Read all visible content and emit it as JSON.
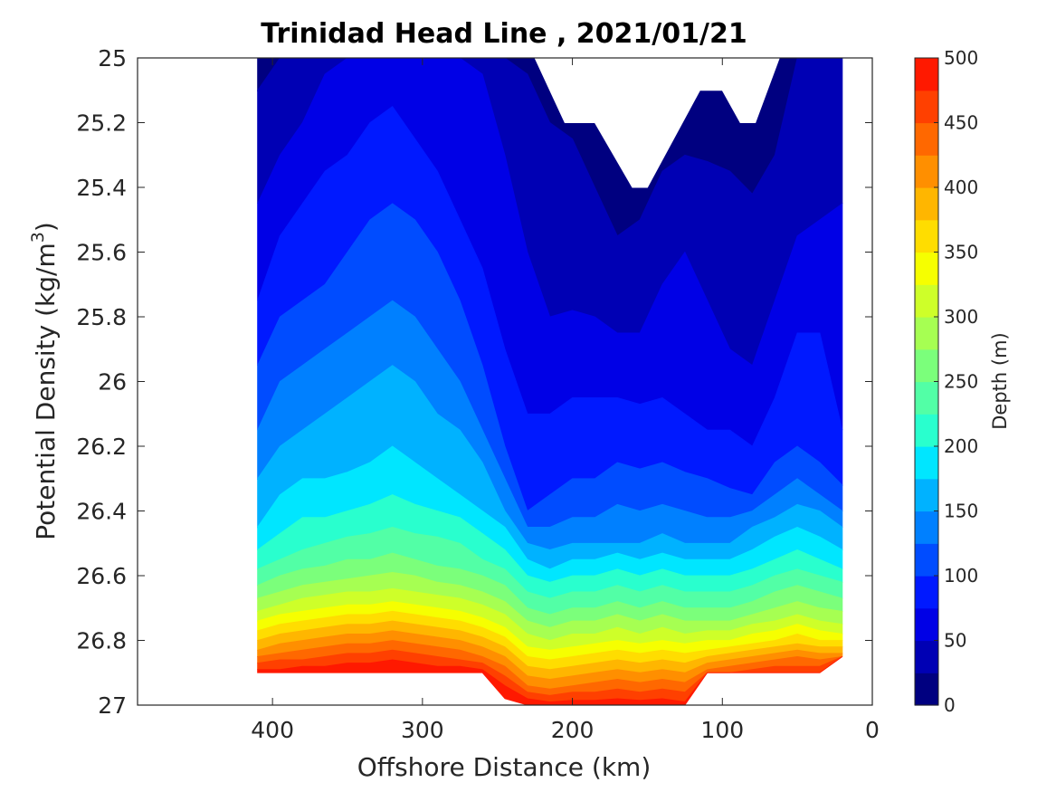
{
  "chart_data": {
    "type": "filled-contour",
    "title": "Trinidad Head Line , 2021/01/21",
    "xlabel": "Offshore Distance (km)",
    "ylabel": "Potential Density (kg/m",
    "ylabel_superscript": "3",
    "ylabel_close": ")",
    "xlim": [
      490,
      0
    ],
    "x_reversed": true,
    "ylim": [
      27,
      25
    ],
    "y_reversed": true,
    "xticks": [
      400,
      300,
      200,
      100,
      0
    ],
    "xtick_labels": [
      "400",
      "300",
      "200",
      "100",
      "0"
    ],
    "yticks": [
      25,
      25.2,
      25.4,
      25.6,
      25.8,
      26,
      26.2,
      26.4,
      26.6,
      26.8,
      27
    ],
    "ytick_labels": [
      "25",
      "25.2",
      "25.4",
      "25.6",
      "25.8",
      "26",
      "26.2",
      "26.4",
      "26.6",
      "26.8",
      "27"
    ],
    "grid": false,
    "colorbar": {
      "label": "Depth (m)",
      "range": [
        0,
        500
      ],
      "level_step": 25,
      "tick_values": [
        0,
        50,
        100,
        150,
        200,
        250,
        300,
        350,
        400,
        450,
        500
      ],
      "tick_labels": [
        "0",
        "50",
        "100",
        "150",
        "200",
        "250",
        "300",
        "350",
        "400",
        "450",
        "500"
      ],
      "colormap": "jet",
      "colors": [
        "#000080",
        "#0000b4",
        "#0000e6",
        "#0019ff",
        "#004cff",
        "#0080ff",
        "#00b2ff",
        "#00e6ff",
        "#29ffce",
        "#52ffa6",
        "#7bff7b",
        "#a6ff52",
        "#ceff29",
        "#f6ff00",
        "#ffdd00",
        "#ffb600",
        "#ff8f00",
        "#ff6800",
        "#ff4000",
        "#ff1900",
        "#e60000"
      ]
    },
    "x": [
      410,
      395,
      380,
      365,
      350,
      335,
      320,
      305,
      290,
      275,
      260,
      245,
      230,
      215,
      200,
      185,
      170,
      155,
      140,
      125,
      110,
      95,
      80,
      65,
      50,
      35,
      20
    ],
    "bottom_density": [
      26.9,
      26.9,
      26.9,
      26.9,
      26.9,
      26.9,
      26.9,
      26.9,
      26.9,
      26.9,
      26.9,
      26.98,
      27.0,
      27.0,
      27.0,
      27.0,
      27.0,
      27.0,
      27.0,
      27.0,
      26.9,
      26.9,
      26.9,
      26.9,
      26.9,
      26.9,
      26.85
    ],
    "depth_isopycnals": [
      {
        "depth": 25,
        "density": [
          25.1,
          25.0,
          25.0,
          25.0,
          25.0,
          25.0,
          25.0,
          25.0,
          25.0,
          25.0,
          25.0,
          25.0,
          25.05,
          25.2,
          25.25,
          25.4,
          25.55,
          25.5,
          25.35,
          25.3,
          25.32,
          25.35,
          25.42,
          25.3,
          25.0,
          25.0,
          25.0
        ]
      },
      {
        "depth": 50,
        "density": [
          25.45,
          25.3,
          25.2,
          25.05,
          25.0,
          25.0,
          25.0,
          25.0,
          25.0,
          25.0,
          25.05,
          25.3,
          25.6,
          25.8,
          25.78,
          25.8,
          25.85,
          25.85,
          25.7,
          25.6,
          25.75,
          25.9,
          25.95,
          25.75,
          25.55,
          25.5,
          25.45
        ]
      },
      {
        "depth": 75,
        "density": [
          25.75,
          25.55,
          25.45,
          25.35,
          25.3,
          25.2,
          25.15,
          25.25,
          25.35,
          25.5,
          25.65,
          25.9,
          26.1,
          26.1,
          26.05,
          26.05,
          26.05,
          26.07,
          26.05,
          26.1,
          26.15,
          26.15,
          26.2,
          26.05,
          25.85,
          25.85,
          26.15
        ]
      },
      {
        "depth": 100,
        "density": [
          25.95,
          25.8,
          25.75,
          25.7,
          25.6,
          25.5,
          25.45,
          25.5,
          25.6,
          25.75,
          25.95,
          26.2,
          26.4,
          26.35,
          26.3,
          26.3,
          26.25,
          26.27,
          26.25,
          26.28,
          26.3,
          26.33,
          26.35,
          26.25,
          26.2,
          26.25,
          26.32
        ]
      },
      {
        "depth": 125,
        "density": [
          26.15,
          26.0,
          25.95,
          25.9,
          25.85,
          25.8,
          25.75,
          25.8,
          25.9,
          26.0,
          26.15,
          26.3,
          26.45,
          26.45,
          26.42,
          26.42,
          26.38,
          26.4,
          26.38,
          26.4,
          26.42,
          26.42,
          26.4,
          26.35,
          26.3,
          26.35,
          26.4
        ]
      },
      {
        "depth": 150,
        "density": [
          26.3,
          26.2,
          26.15,
          26.1,
          26.05,
          26.0,
          25.95,
          26.0,
          26.1,
          26.15,
          26.25,
          26.4,
          26.5,
          26.52,
          26.5,
          26.5,
          26.5,
          26.5,
          26.47,
          26.5,
          26.5,
          26.5,
          26.45,
          26.42,
          26.38,
          26.4,
          26.45
        ]
      },
      {
        "depth": 175,
        "density": [
          26.45,
          26.35,
          26.3,
          26.3,
          26.28,
          26.25,
          26.2,
          26.25,
          26.3,
          26.35,
          26.4,
          26.45,
          26.55,
          26.58,
          26.55,
          26.55,
          26.53,
          26.55,
          26.53,
          26.55,
          26.55,
          26.55,
          26.52,
          26.48,
          26.45,
          26.48,
          26.52
        ]
      },
      {
        "depth": 200,
        "density": [
          26.52,
          26.47,
          26.42,
          26.42,
          26.4,
          26.38,
          26.35,
          26.38,
          26.4,
          26.42,
          26.47,
          26.52,
          26.6,
          26.62,
          26.6,
          26.6,
          26.58,
          26.6,
          26.58,
          26.6,
          26.6,
          26.6,
          26.58,
          26.55,
          26.52,
          26.55,
          26.58
        ]
      },
      {
        "depth": 225,
        "density": [
          26.58,
          26.55,
          26.52,
          26.5,
          26.48,
          26.47,
          26.45,
          26.47,
          26.48,
          26.5,
          26.55,
          26.58,
          26.65,
          26.67,
          26.65,
          26.65,
          26.63,
          26.65,
          26.63,
          26.65,
          26.65,
          26.65,
          26.63,
          26.6,
          26.58,
          26.6,
          26.62
        ]
      },
      {
        "depth": 250,
        "density": [
          26.63,
          26.6,
          26.58,
          26.57,
          26.55,
          26.55,
          26.53,
          26.55,
          26.57,
          26.58,
          26.6,
          26.63,
          26.7,
          26.72,
          26.7,
          26.7,
          26.68,
          26.7,
          26.68,
          26.7,
          26.7,
          26.7,
          26.68,
          26.65,
          26.63,
          26.65,
          26.67
        ]
      },
      {
        "depth": 275,
        "density": [
          26.67,
          26.65,
          26.63,
          26.62,
          26.61,
          26.6,
          26.59,
          26.6,
          26.62,
          26.63,
          26.65,
          26.68,
          26.74,
          26.76,
          26.74,
          26.74,
          26.72,
          26.74,
          26.72,
          26.74,
          26.74,
          26.74,
          26.72,
          26.7,
          26.68,
          26.7,
          26.71
        ]
      },
      {
        "depth": 300,
        "density": [
          26.71,
          26.69,
          26.67,
          26.66,
          26.65,
          26.65,
          26.64,
          26.65,
          26.66,
          26.67,
          26.69,
          26.72,
          26.78,
          26.8,
          26.78,
          26.78,
          26.76,
          26.78,
          26.76,
          26.78,
          26.77,
          26.77,
          26.75,
          26.74,
          26.72,
          26.74,
          26.75
        ]
      },
      {
        "depth": 325,
        "density": [
          26.74,
          26.72,
          26.71,
          26.7,
          26.69,
          26.69,
          26.68,
          26.69,
          26.7,
          26.71,
          26.73,
          26.76,
          26.82,
          26.83,
          26.82,
          26.81,
          26.8,
          26.81,
          26.8,
          26.81,
          26.8,
          26.8,
          26.78,
          26.77,
          26.75,
          26.77,
          26.78
        ]
      },
      {
        "depth": 350,
        "density": [
          26.77,
          26.75,
          26.74,
          26.73,
          26.72,
          26.72,
          26.71,
          26.72,
          26.73,
          26.74,
          26.76,
          26.79,
          26.85,
          26.86,
          26.85,
          26.84,
          26.83,
          26.84,
          26.83,
          26.84,
          26.83,
          26.82,
          26.81,
          26.8,
          26.78,
          26.8,
          26.8
        ]
      },
      {
        "depth": 375,
        "density": [
          26.8,
          26.78,
          26.77,
          26.76,
          26.75,
          26.75,
          26.74,
          26.75,
          26.76,
          26.77,
          26.79,
          26.82,
          26.88,
          26.89,
          26.88,
          26.87,
          26.86,
          26.87,
          26.86,
          26.87,
          26.85,
          26.84,
          26.83,
          26.82,
          26.81,
          26.82,
          26.82
        ]
      },
      {
        "depth": 400,
        "density": [
          26.83,
          26.81,
          26.8,
          26.79,
          26.78,
          26.78,
          26.77,
          26.78,
          26.79,
          26.8,
          26.82,
          26.85,
          26.91,
          26.92,
          26.91,
          26.9,
          26.89,
          26.9,
          26.89,
          26.9,
          26.87,
          26.86,
          26.85,
          26.84,
          26.83,
          26.84,
          26.84
        ]
      },
      {
        "depth": 425,
        "density": [
          26.85,
          26.84,
          26.83,
          26.82,
          26.81,
          26.81,
          26.8,
          26.81,
          26.82,
          26.83,
          26.85,
          26.88,
          26.94,
          26.95,
          26.94,
          26.93,
          26.92,
          26.93,
          26.92,
          26.93,
          26.89,
          26.88,
          26.87,
          26.86,
          26.85,
          26.86,
          26.85
        ]
      },
      {
        "depth": 450,
        "density": [
          26.87,
          26.86,
          26.86,
          26.85,
          26.84,
          26.84,
          26.83,
          26.84,
          26.85,
          26.86,
          26.87,
          26.91,
          26.96,
          26.97,
          26.96,
          26.96,
          26.95,
          26.96,
          26.95,
          26.96,
          26.9,
          26.9,
          26.89,
          26.88,
          26.88,
          26.88,
          26.85
        ]
      },
      {
        "depth": 475,
        "density": [
          26.89,
          26.89,
          26.88,
          26.88,
          26.87,
          26.87,
          26.86,
          26.87,
          26.88,
          26.88,
          26.89,
          26.94,
          26.98,
          26.99,
          26.985,
          26.985,
          26.98,
          26.985,
          26.98,
          26.99,
          26.9,
          26.9,
          26.9,
          26.9,
          26.9,
          26.9,
          26.85
        ]
      }
    ]
  }
}
